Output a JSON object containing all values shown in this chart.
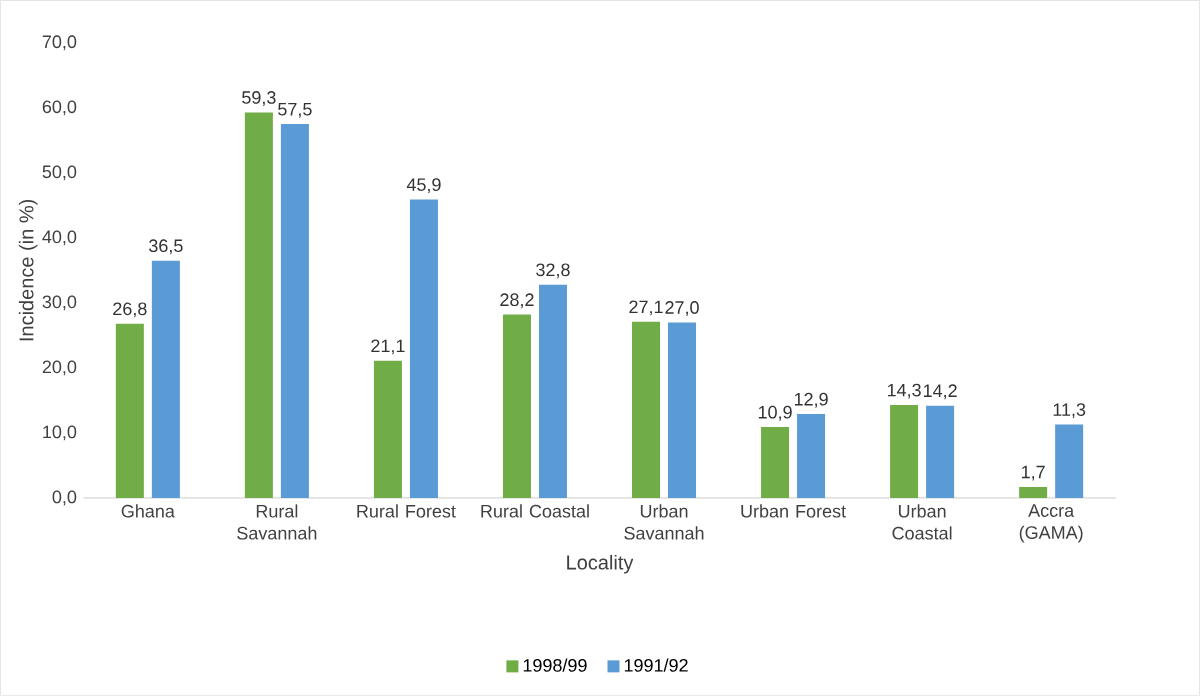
{
  "chart_data": {
    "type": "bar",
    "categories": [
      "Ghana",
      "Rural Savannah",
      "Rural Forest",
      "Rural Coastal",
      "Urban Savannah",
      "Urban Forest",
      "Urban Coastal",
      "Accra (GAMA)"
    ],
    "series": [
      {
        "name": "1998/99",
        "color": "#70ad47",
        "values": [
          26.8,
          59.3,
          21.1,
          28.2,
          27.1,
          10.9,
          14.3,
          1.7
        ],
        "value_labels": [
          "26,8",
          "59,3",
          "21,1",
          "28,2",
          "27,1",
          "10,9",
          "14,3",
          "1,7"
        ]
      },
      {
        "name": "1991/92",
        "color": "#5b9bd5",
        "values": [
          36.5,
          57.5,
          45.9,
          32.8,
          27.0,
          12.9,
          14.2,
          11.3
        ],
        "value_labels": [
          "36,5",
          "57,5",
          "45,9",
          "32,8",
          "27,0",
          "12,9",
          "14,2",
          "11,3"
        ]
      }
    ],
    "xlabel": "Locality",
    "ylabel": "Incidence (in %)",
    "ylim": [
      0,
      70
    ],
    "yticks": [
      {
        "value": 0,
        "label": "0,0"
      },
      {
        "value": 10,
        "label": "10,0"
      },
      {
        "value": 20,
        "label": "20,0"
      },
      {
        "value": 30,
        "label": "30,0"
      },
      {
        "value": 40,
        "label": "40,0"
      },
      {
        "value": 50,
        "label": "50,0"
      },
      {
        "value": 60,
        "label": "60,0"
      },
      {
        "value": 70,
        "label": "70,0"
      }
    ],
    "legend": "bottom"
  }
}
